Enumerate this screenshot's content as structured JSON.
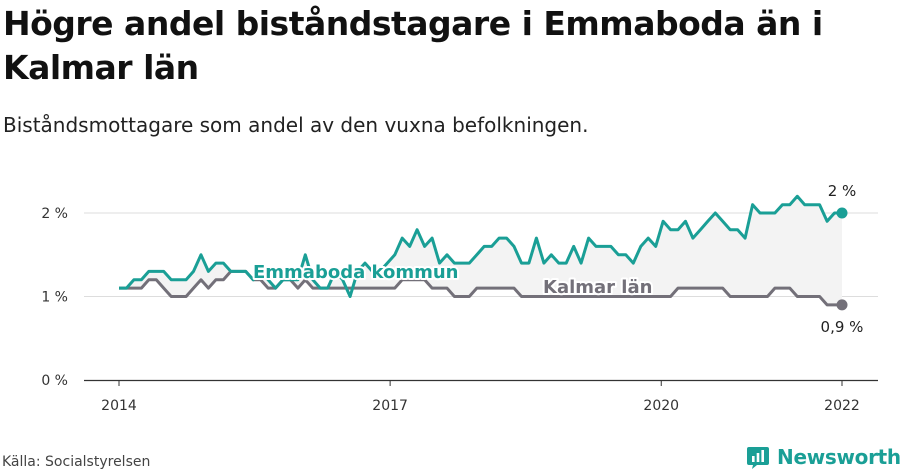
{
  "title": "Högre andel biståndstagare i Emmaboda än i Kalmar län",
  "subtitle": "Biståndsmottagare som andel av den vuxna befolkningen.",
  "source": "Källa: Socialstyrelsen",
  "brand": "Newsworthy",
  "colors": {
    "accent": "#1a9f96",
    "secondary": "#737079",
    "fill": "#f3f3f3",
    "grid": "#dddddd",
    "axis": "#333333"
  },
  "chart_data": {
    "type": "line",
    "xlim": [
      2014.0,
      2022.0
    ],
    "ylim": [
      0,
      2.0
    ],
    "xticks": [
      2014,
      2017,
      2020,
      2022
    ],
    "xtick_labels": [
      "2014",
      "2017",
      "2020",
      "2022"
    ],
    "yticks": [
      0,
      1,
      2
    ],
    "ytick_labels": [
      "0 %",
      "1 %",
      "2 %"
    ],
    "grid": true,
    "series": [
      {
        "name": "Emmaboda kommun",
        "color": "#1a9f96",
        "end_label": "2 %",
        "values": [
          1.1,
          1.1,
          1.2,
          1.2,
          1.3,
          1.3,
          1.3,
          1.2,
          1.2,
          1.2,
          1.3,
          1.5,
          1.3,
          1.4,
          1.4,
          1.3,
          1.3,
          1.3,
          1.2,
          1.3,
          1.2,
          1.1,
          1.2,
          1.2,
          1.2,
          1.5,
          1.2,
          1.1,
          1.1,
          1.3,
          1.2,
          1.0,
          1.3,
          1.4,
          1.3,
          1.3,
          1.4,
          1.5,
          1.7,
          1.6,
          1.8,
          1.6,
          1.7,
          1.4,
          1.5,
          1.4,
          1.4,
          1.4,
          1.5,
          1.6,
          1.6,
          1.7,
          1.7,
          1.6,
          1.4,
          1.4,
          1.7,
          1.4,
          1.5,
          1.4,
          1.4,
          1.6,
          1.4,
          1.7,
          1.6,
          1.6,
          1.6,
          1.5,
          1.5,
          1.4,
          1.6,
          1.7,
          1.6,
          1.9,
          1.8,
          1.8,
          1.9,
          1.7,
          1.8,
          1.9,
          2.0,
          1.9,
          1.8,
          1.8,
          1.7,
          2.1,
          2.0,
          2.0,
          2.0,
          2.1,
          2.1,
          2.2,
          2.1,
          2.1,
          2.1,
          1.9,
          2.0,
          2.0
        ]
      },
      {
        "name": "Kalmar län",
        "color": "#737079",
        "end_label": "0,9 %",
        "values": [
          1.1,
          1.1,
          1.1,
          1.1,
          1.2,
          1.2,
          1.1,
          1.0,
          1.0,
          1.0,
          1.1,
          1.2,
          1.1,
          1.2,
          1.2,
          1.3,
          1.3,
          1.3,
          1.2,
          1.2,
          1.1,
          1.1,
          1.2,
          1.2,
          1.1,
          1.2,
          1.1,
          1.1,
          1.1,
          1.1,
          1.1,
          1.1,
          1.1,
          1.1,
          1.1,
          1.1,
          1.1,
          1.1,
          1.2,
          1.2,
          1.2,
          1.2,
          1.1,
          1.1,
          1.1,
          1.0,
          1.0,
          1.0,
          1.1,
          1.1,
          1.1,
          1.1,
          1.1,
          1.1,
          1.0,
          1.0,
          1.0,
          1.0,
          1.0,
          1.0,
          1.0,
          1.0,
          1.0,
          1.0,
          1.0,
          1.0,
          1.0,
          1.0,
          1.0,
          1.0,
          1.0,
          1.0,
          1.0,
          1.0,
          1.0,
          1.1,
          1.1,
          1.1,
          1.1,
          1.1,
          1.1,
          1.1,
          1.0,
          1.0,
          1.0,
          1.0,
          1.0,
          1.0,
          1.1,
          1.1,
          1.1,
          1.0,
          1.0,
          1.0,
          1.0,
          0.9,
          0.9,
          0.9
        ]
      }
    ]
  }
}
